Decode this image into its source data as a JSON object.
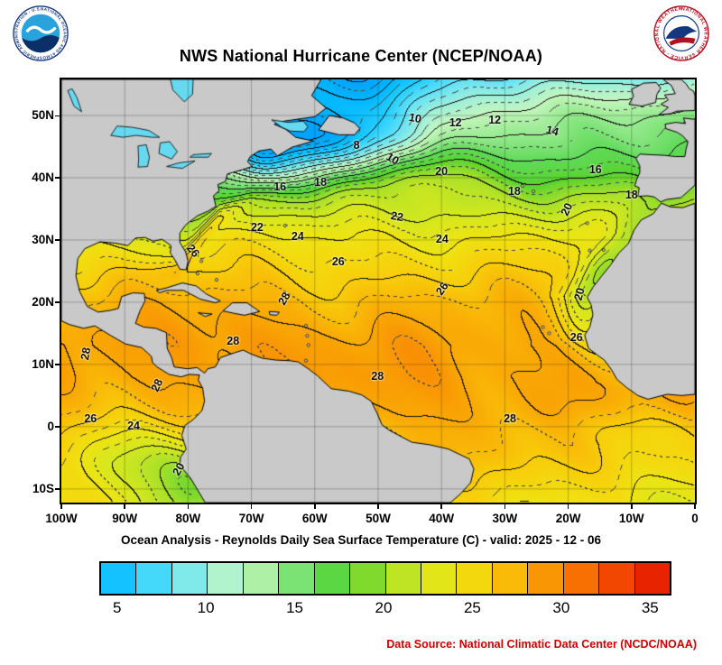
{
  "title": "NWS National Hurricane Center (NCEP/NOAA)",
  "caption": "Ocean Analysis - Reynolds Daily Sea Surface Temperature (C) - valid: 2025 - 12 - 06",
  "footer": {
    "data_source": "Data Source: National Climatic Data Center (NCDC/NOAA)",
    "color": "#cc0000"
  },
  "logos": {
    "noaa_ring": "NATIONAL OCEANIC AND ATMOSPHERIC ADMINISTRATION - U.S. DEPARTMENT OF COMMERCE",
    "nws_ring": "NATIONAL WEATHER SERVICE - NATIONAL WEATHER SERVICE"
  },
  "axes": {
    "lat_ticks": [
      {
        "label": "50N",
        "lat": 50
      },
      {
        "label": "40N",
        "lat": 40
      },
      {
        "label": "30N",
        "lat": 30
      },
      {
        "label": "20N",
        "lat": 20
      },
      {
        "label": "10N",
        "lat": 10
      },
      {
        "label": "0",
        "lat": 0
      },
      {
        "label": "10S",
        "lat": -10
      }
    ],
    "lon_ticks": [
      {
        "label": "100W",
        "lon": -100
      },
      {
        "label": "90W",
        "lon": -90
      },
      {
        "label": "80W",
        "lon": -80
      },
      {
        "label": "70W",
        "lon": -70
      },
      {
        "label": "60W",
        "lon": -60
      },
      {
        "label": "50W",
        "lon": -50
      },
      {
        "label": "40W",
        "lon": -40
      },
      {
        "label": "30W",
        "lon": -30
      },
      {
        "label": "20W",
        "lon": -20
      },
      {
        "label": "10W",
        "lon": -10
      },
      {
        "label": "0",
        "lon": 0
      }
    ],
    "grid_step_deg": 10
  },
  "colorbar": {
    "min": 4,
    "max": 36,
    "cell_step": 2,
    "tick_values": [
      5,
      10,
      15,
      20,
      25,
      30,
      35
    ],
    "tick_labels": [
      "5",
      "10",
      "15",
      "20",
      "25",
      "30",
      "35"
    ]
  },
  "chart_data": {
    "type": "heatmap",
    "title": "NWS National Hurricane Center (NCEP/NOAA)",
    "subtitle": "Ocean Analysis - Reynolds Daily Sea Surface Temperature (C) - valid: 2025 - 12 - 06",
    "units": "C",
    "lon_range": [
      -100,
      0
    ],
    "lat_range": [
      -12.2,
      55.8
    ],
    "contour_interval_solid": 2,
    "contour_interval_dashed": 1,
    "land_color": "#c9c9c9",
    "lake_color": "#66d9f0",
    "color_scale": [
      {
        "t": 2,
        "hex": "#00a4ff"
      },
      {
        "t": 4,
        "hex": "#00b6ff"
      },
      {
        "t": 6,
        "hex": "#25ceff"
      },
      {
        "t": 8,
        "hex": "#63e2f6"
      },
      {
        "t": 10,
        "hex": "#9defdc"
      },
      {
        "t": 12,
        "hex": "#c3f6bd"
      },
      {
        "t": 14,
        "hex": "#96ea8f"
      },
      {
        "t": 16,
        "hex": "#60da58"
      },
      {
        "t": 18,
        "hex": "#58d32f"
      },
      {
        "t": 20,
        "hex": "#a6e02a"
      },
      {
        "t": 22,
        "hex": "#d5e81e"
      },
      {
        "t": 24,
        "hex": "#efe312"
      },
      {
        "t": 26,
        "hex": "#f8cd0a"
      },
      {
        "t": 28,
        "hex": "#f9a805"
      },
      {
        "t": 30,
        "hex": "#f98302"
      },
      {
        "t": 32,
        "hex": "#f55c00"
      },
      {
        "t": 34,
        "hex": "#ee3200"
      },
      {
        "t": 36,
        "hex": "#df1400"
      }
    ],
    "contour_labels": [
      {
        "v": 10,
        "lon": -44.2,
        "lat": 49.5,
        "rot": 10
      },
      {
        "v": 12,
        "lon": -37.8,
        "lat": 48.8,
        "rot": 0
      },
      {
        "v": 12,
        "lon": -31.6,
        "lat": 49.3,
        "rot": 0
      },
      {
        "v": 14,
        "lon": -22.5,
        "lat": 47.6,
        "rot": 15
      },
      {
        "v": 8,
        "lon": -53.4,
        "lat": 45.2,
        "rot": 0
      },
      {
        "v": 10,
        "lon": -47.7,
        "lat": 43.0,
        "rot": 30
      },
      {
        "v": 16,
        "lon": -15.7,
        "lat": 41.3,
        "rot": 0
      },
      {
        "v": 20,
        "lon": -40.0,
        "lat": 41.0,
        "rot": 0
      },
      {
        "v": 16,
        "lon": -65.5,
        "lat": 38.5,
        "rot": 0
      },
      {
        "v": 18,
        "lon": -59.1,
        "lat": 39.3,
        "rot": 0
      },
      {
        "v": 18,
        "lon": -28.5,
        "lat": 37.8,
        "rot": 0
      },
      {
        "v": 18,
        "lon": -10.0,
        "lat": 37.2,
        "rot": 0
      },
      {
        "v": 20,
        "lon": -20.2,
        "lat": 34.9,
        "rot": -65
      },
      {
        "v": 22,
        "lon": -69.1,
        "lat": 32.0,
        "rot": 0
      },
      {
        "v": 22,
        "lon": -47.0,
        "lat": 33.7,
        "rot": 10
      },
      {
        "v": 24,
        "lon": -62.7,
        "lat": 30.6,
        "rot": 0
      },
      {
        "v": 24,
        "lon": -39.9,
        "lat": 30.1,
        "rot": 0
      },
      {
        "v": 26,
        "lon": -79.2,
        "lat": 28.3,
        "rot": 50
      },
      {
        "v": 26,
        "lon": -56.3,
        "lat": 26.5,
        "rot": 0
      },
      {
        "v": 26,
        "lon": -39.9,
        "lat": 22.2,
        "rot": -55
      },
      {
        "v": 20,
        "lon": -18.3,
        "lat": 21.3,
        "rot": -75
      },
      {
        "v": 26,
        "lon": -18.7,
        "lat": 14.3,
        "rot": 0
      },
      {
        "v": 28,
        "lon": -64.8,
        "lat": 20.6,
        "rot": -60
      },
      {
        "v": 28,
        "lon": -72.9,
        "lat": 13.7,
        "rot": 0
      },
      {
        "v": 28,
        "lon": -96.2,
        "lat": 11.7,
        "rot": -80
      },
      {
        "v": 28,
        "lon": -84.9,
        "lat": 6.7,
        "rot": -65
      },
      {
        "v": 28,
        "lon": -50.1,
        "lat": 8.1,
        "rot": 0
      },
      {
        "v": 28,
        "lon": -29.2,
        "lat": 1.3,
        "rot": 0
      },
      {
        "v": 26,
        "lon": -95.4,
        "lat": 1.3,
        "rot": 0
      },
      {
        "v": 24,
        "lon": -88.6,
        "lat": 0.1,
        "rot": 0
      },
      {
        "v": 20,
        "lon": -81.5,
        "lat": -6.8,
        "rot": -60
      }
    ],
    "colorbar_ticks": [
      5,
      10,
      15,
      20,
      25,
      30,
      35
    ]
  }
}
